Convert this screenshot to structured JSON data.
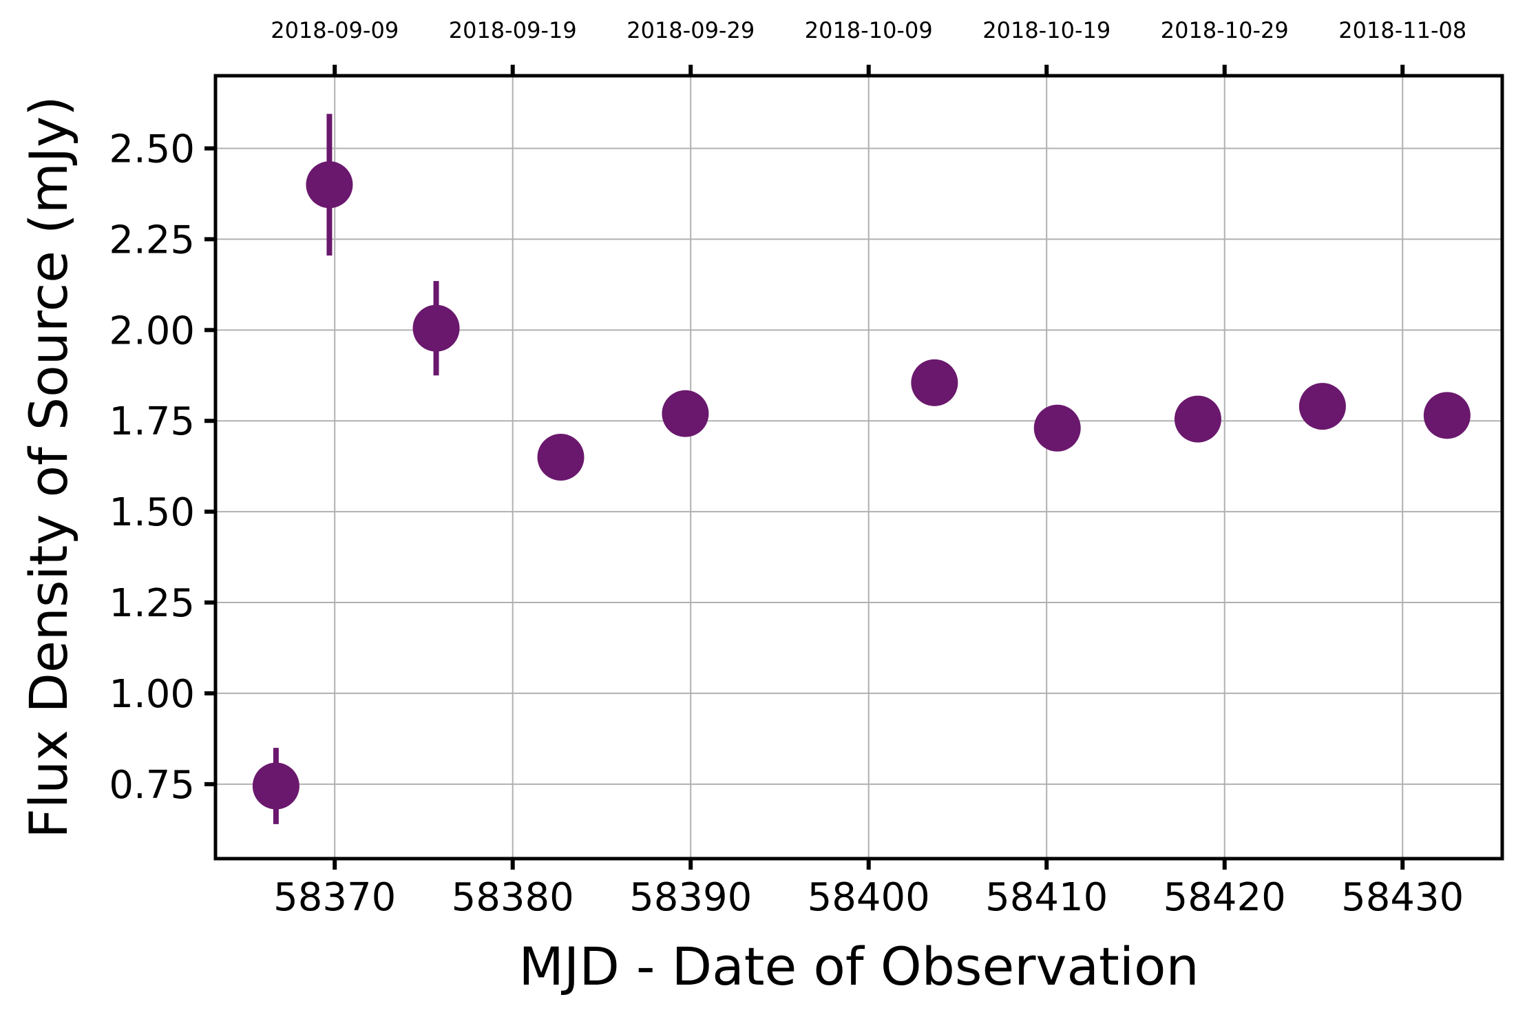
{
  "chart_data": {
    "type": "scatter",
    "title": "",
    "xlabel": "MJD - Date of Observation",
    "ylabel": "Flux Density of Source (mJy)",
    "xlim": [
      58363.3,
      58435.6
    ],
    "ylim": [
      0.545,
      2.7
    ],
    "x_ticks": [
      58370,
      58380,
      58390,
      58400,
      58410,
      58420,
      58430
    ],
    "x_tick_labels": [
      "58370",
      "58380",
      "58390",
      "58400",
      "58410",
      "58420",
      "58430"
    ],
    "y_ticks": [
      0.75,
      1.0,
      1.25,
      1.5,
      1.75,
      2.0,
      2.25,
      2.5
    ],
    "y_tick_labels": [
      "0.75",
      "1.00",
      "1.25",
      "1.50",
      "1.75",
      "2.00",
      "2.25",
      "2.50"
    ],
    "top_axis_label": "",
    "top_ticks": [
      58370,
      58380,
      58390,
      58400,
      58410,
      58420,
      58430
    ],
    "top_tick_labels": [
      "2018-09-09",
      "2018-09-19",
      "2018-09-29",
      "2018-10-09",
      "2018-10-19",
      "2018-10-29",
      "2018-11-08"
    ],
    "grid": true,
    "marker_color": "#6a186d",
    "points": [
      {
        "x": 58366.7,
        "y": 0.745,
        "yerr": 0.105
      },
      {
        "x": 58369.7,
        "y": 2.4,
        "yerr": 0.195
      },
      {
        "x": 58375.7,
        "y": 2.005,
        "yerr": 0.13
      },
      {
        "x": 58382.7,
        "y": 1.65,
        "yerr": 0
      },
      {
        "x": 58389.7,
        "y": 1.77,
        "yerr": 0
      },
      {
        "x": 58403.7,
        "y": 1.855,
        "yerr": 0
      },
      {
        "x": 58410.6,
        "y": 1.73,
        "yerr": 0
      },
      {
        "x": 58418.5,
        "y": 1.755,
        "yerr": 0
      },
      {
        "x": 58425.5,
        "y": 1.79,
        "yerr": 0
      },
      {
        "x": 58432.5,
        "y": 1.765,
        "yerr": 0
      }
    ]
  }
}
